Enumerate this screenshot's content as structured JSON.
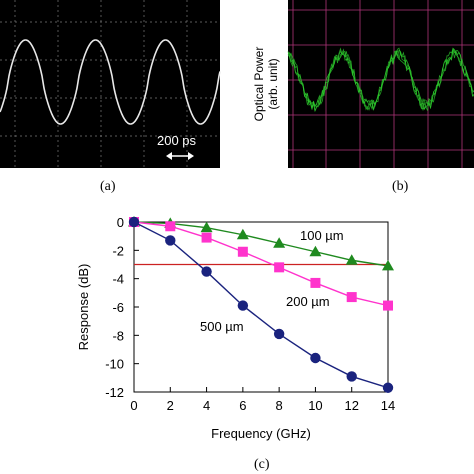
{
  "panels": {
    "a": {
      "label": "(a)",
      "scale_label": "200 ps",
      "trace_color": "#e8e8e8",
      "background": "#000000",
      "grid_color": "#7a7a7a"
    },
    "b": {
      "label": "(b)",
      "ylabel_line1": "Optical Power",
      "ylabel_line2": "(arb. unit)",
      "trace_color": "#2ecc2e",
      "background": "#000000",
      "grid_color": "#b0357a"
    },
    "c": {
      "label": "(c)"
    }
  },
  "chart_data": {
    "type": "line",
    "title": "",
    "xlabel": "Frequency (GHz)",
    "ylabel": "Response (dB)",
    "xlim": [
      0,
      14
    ],
    "ylim": [
      -12,
      0
    ],
    "xticks": [
      0,
      2,
      4,
      6,
      8,
      10,
      12,
      14
    ],
    "yticks": [
      0,
      -2,
      -4,
      -6,
      -8,
      -10,
      -12
    ],
    "grid": false,
    "x": [
      0,
      2,
      4,
      6,
      8,
      10,
      12,
      14
    ],
    "series": [
      {
        "name": "100 µm",
        "values": [
          0,
          -0.1,
          -0.4,
          -0.9,
          -1.5,
          -2.1,
          -2.7,
          -3.1
        ],
        "color": "#1f8a1f",
        "marker": "triangle"
      },
      {
        "name": "200 µm",
        "values": [
          0,
          -0.3,
          -1.1,
          -2.1,
          -3.2,
          -4.3,
          -5.3,
          -5.9
        ],
        "color": "#ff33cc",
        "marker": "square"
      },
      {
        "name": "500 µm",
        "values": [
          0,
          -1.3,
          -3.5,
          -5.9,
          -7.9,
          -9.6,
          -10.9,
          -11.7
        ],
        "color": "#1a237e",
        "marker": "circle"
      }
    ],
    "reference_line": {
      "y": -3,
      "color": "#cc2222"
    },
    "annotations": [
      "100 µm",
      "200 µm",
      "500 µm"
    ]
  }
}
